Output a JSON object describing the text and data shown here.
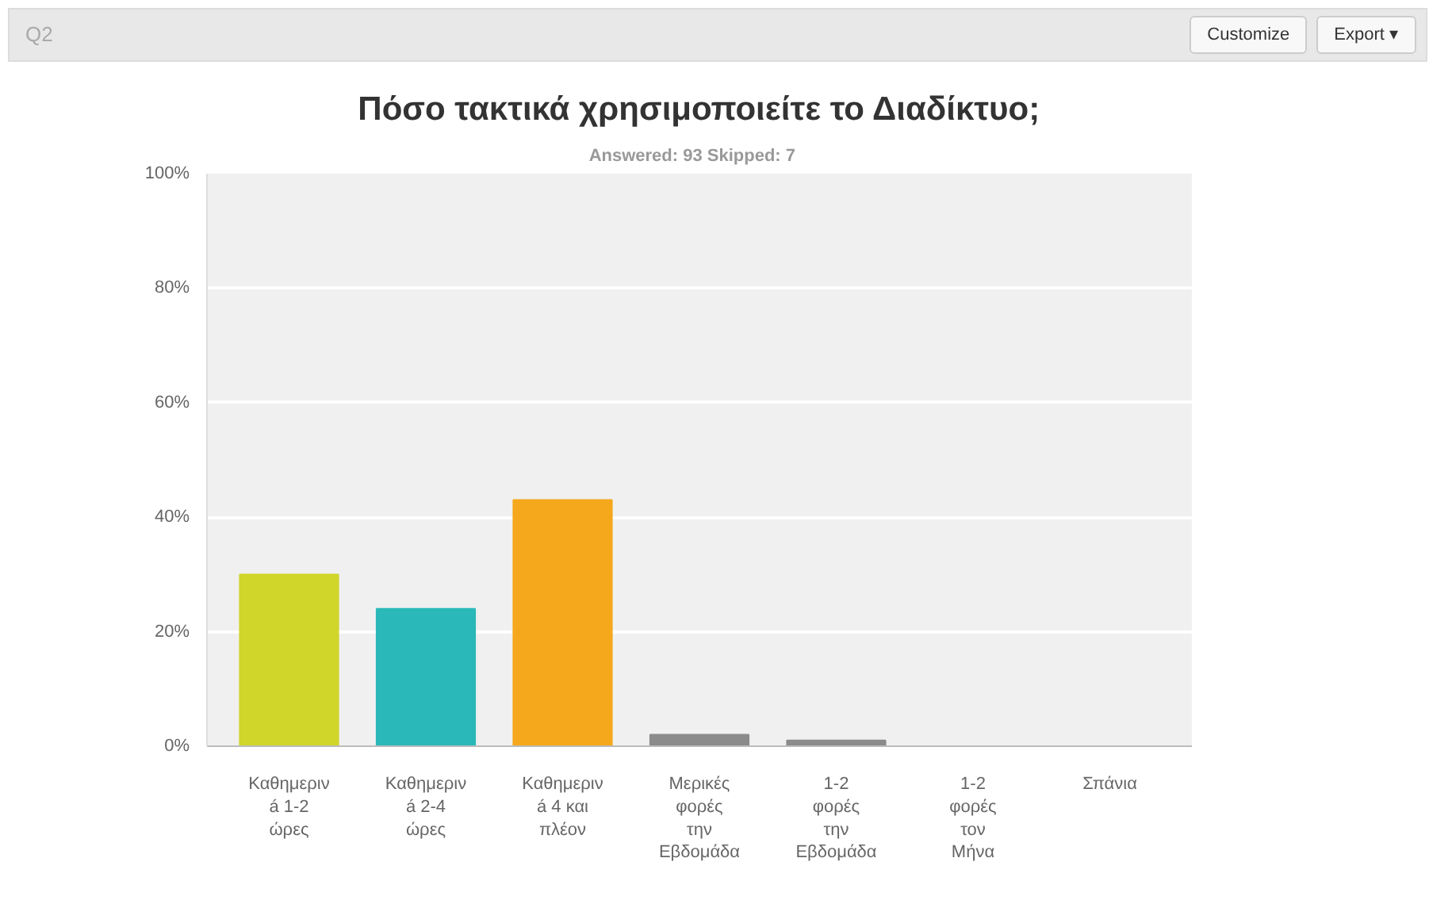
{
  "chart_data": {
    "type": "bar",
    "title": "Πόσο τακτικά χρησιμοποιείτε το Διαδίκτυο;",
    "subtitle": "Answered: 93    Skipped: 7",
    "annotations": [
      "Q2",
      "Customize",
      "Export ▾"
    ],
    "categories": [
      "Καθημεριν\ná 1-2\nώρες",
      "Καθημεριν\ná 2-4\nώρες",
      "Καθημεριν\ná 4 και\nπλέον",
      "Μερικές\nφορές\nτην\nΕβδομάδα",
      "1-2\nφορές\nτην\nΕβδομάδα",
      "1-2\nφορές\nτον\nΜήνα",
      "Σπάνια"
    ],
    "values": [
      30,
      24,
      43,
      2,
      1,
      0,
      0
    ],
    "colors": [
      "#d0d62a",
      "#2bb8b8",
      "#f6a81c",
      "#8b8b8b",
      "#8b8b8b",
      "#8b8b8b",
      "#8b8b8b"
    ],
    "ylim": [
      0,
      100
    ],
    "yticks": [
      {
        "value": 0,
        "label": "0%"
      },
      {
        "value": 20,
        "label": "20%"
      },
      {
        "value": 40,
        "label": "40%"
      },
      {
        "value": 60,
        "label": "60%"
      },
      {
        "value": 80,
        "label": "80%"
      },
      {
        "value": 100,
        "label": "100%"
      }
    ],
    "grid": "y"
  }
}
